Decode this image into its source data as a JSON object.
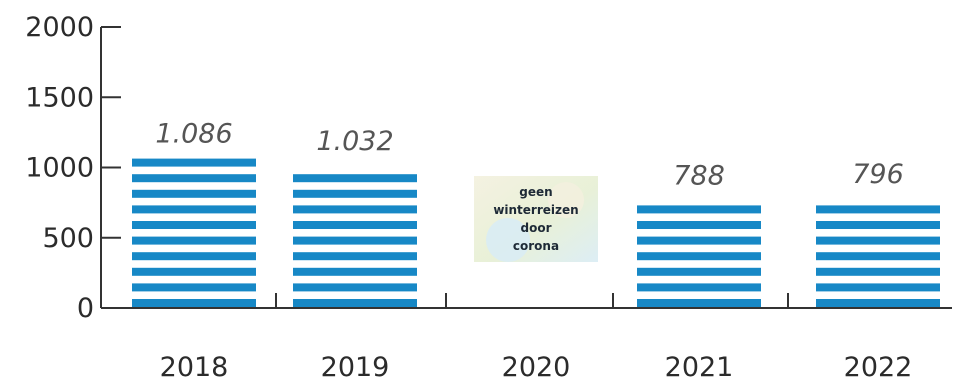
{
  "chart_data": {
    "type": "bar",
    "categories": [
      "2018",
      "2019",
      "2020",
      "2021",
      "2022"
    ],
    "values": [
      1086,
      1032,
      null,
      788,
      796
    ],
    "value_labels": [
      "1.086",
      "1.032",
      "",
      "788",
      "796"
    ],
    "y_ticks": [
      "0",
      "500",
      "1000",
      "1500",
      "2000"
    ],
    "ylim": [
      0,
      2000
    ],
    "note": {
      "category": "2020",
      "lines": [
        "geen",
        "winterreizen",
        "door",
        "corona"
      ]
    },
    "title": "",
    "xlabel": "",
    "ylabel": "",
    "grid": false,
    "colors": {
      "bar": "#1788c6",
      "axis": "#333333",
      "note_bg_warm": "#f3f0de",
      "note_bg_cool": "#d9ecf4",
      "note_bg_green": "#e6efd3"
    },
    "bar_style": "horizontal-stripes"
  }
}
